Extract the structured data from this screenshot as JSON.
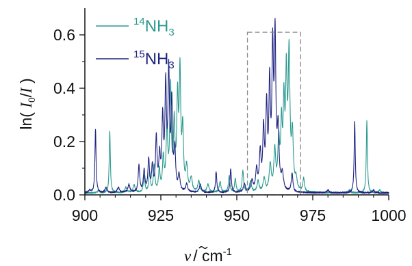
{
  "chart_data": {
    "type": "line",
    "title": "",
    "xlabel": {
      "symbol": "ν",
      "rest": "/ cm",
      "sup": "-1"
    },
    "ylabel": {
      "prefix": "ln( ",
      "num": "I",
      "num_sub": "0",
      "sep": "/",
      "den": "I",
      "suffix": " )"
    },
    "xlim": [
      900,
      1000
    ],
    "ylim": [
      0,
      0.7
    ],
    "xticks": [
      900,
      925,
      950,
      975,
      1000
    ],
    "xtick_labels": [
      "900",
      "925",
      "950",
      "975",
      "1000"
    ],
    "yticks": [
      0.0,
      0.2,
      0.4,
      0.6
    ],
    "ytick_labels": [
      "0.0",
      "0.2",
      "0.4",
      "0.6"
    ],
    "grid": false,
    "legend_position": "top-left",
    "highlight_box": {
      "x": [
        953.5,
        971
      ],
      "y": [
        0,
        0.61
      ],
      "style": "dashed"
    },
    "series": [
      {
        "name_parts": {
          "sup": "14",
          "main": "NH",
          "sub": "3"
        },
        "color": "#2a9a8f",
        "peaks": [
          {
            "x": 904.5,
            "h": 0.01,
            "w": 0.3
          },
          {
            "x": 908.2,
            "h": 0.23,
            "w": 0.22
          },
          {
            "x": 913.5,
            "h": 0.02,
            "w": 0.4
          },
          {
            "x": 916.2,
            "h": 0.03,
            "w": 0.4
          },
          {
            "x": 919.5,
            "h": 0.06,
            "w": 0.3
          },
          {
            "x": 921.3,
            "h": 0.07,
            "w": 0.3
          },
          {
            "x": 922.8,
            "h": 0.1,
            "w": 0.3
          },
          {
            "x": 924.5,
            "h": 0.08,
            "w": 0.3
          },
          {
            "x": 925.8,
            "h": 0.12,
            "w": 0.3
          },
          {
            "x": 927.0,
            "h": 0.22,
            "w": 0.35
          },
          {
            "x": 928.2,
            "h": 0.38,
            "w": 0.3
          },
          {
            "x": 929.4,
            "h": 0.24,
            "w": 0.3
          },
          {
            "x": 930.5,
            "h": 0.33,
            "w": 0.3
          },
          {
            "x": 931.3,
            "h": 0.43,
            "w": 0.3
          },
          {
            "x": 932.2,
            "h": 0.22,
            "w": 0.3
          },
          {
            "x": 933.5,
            "h": 0.09,
            "w": 0.35
          },
          {
            "x": 935.0,
            "h": 0.05,
            "w": 0.4
          },
          {
            "x": 937.5,
            "h": 0.04,
            "w": 0.4
          },
          {
            "x": 940.5,
            "h": 0.03,
            "w": 0.4
          },
          {
            "x": 944.5,
            "h": 0.04,
            "w": 0.35
          },
          {
            "x": 947.5,
            "h": 0.06,
            "w": 0.3
          },
          {
            "x": 949.5,
            "h": 0.05,
            "w": 0.3
          },
          {
            "x": 952.0,
            "h": 0.08,
            "w": 0.3
          },
          {
            "x": 954.5,
            "h": 0.04,
            "w": 0.4
          },
          {
            "x": 957.0,
            "h": 0.04,
            "w": 0.4
          },
          {
            "x": 959.0,
            "h": 0.05,
            "w": 0.4
          },
          {
            "x": 961.0,
            "h": 0.1,
            "w": 0.4
          },
          {
            "x": 962.5,
            "h": 0.15,
            "w": 0.35
          },
          {
            "x": 963.8,
            "h": 0.18,
            "w": 0.35
          },
          {
            "x": 964.7,
            "h": 0.23,
            "w": 0.3
          },
          {
            "x": 965.5,
            "h": 0.3,
            "w": 0.3
          },
          {
            "x": 966.3,
            "h": 0.4,
            "w": 0.3
          },
          {
            "x": 967.2,
            "h": 0.5,
            "w": 0.35
          },
          {
            "x": 968.3,
            "h": 0.2,
            "w": 0.35
          },
          {
            "x": 969.5,
            "h": 0.04,
            "w": 0.4
          },
          {
            "x": 972.0,
            "h": 0.05,
            "w": 0.3
          },
          {
            "x": 987.0,
            "h": 0.01,
            "w": 0.4
          },
          {
            "x": 992.8,
            "h": 0.27,
            "w": 0.22
          },
          {
            "x": 997.0,
            "h": 0.01,
            "w": 0.4
          }
        ]
      },
      {
        "name_parts": {
          "sup": "15",
          "main": "NH",
          "sub": "3"
        },
        "color": "#1f2380",
        "peaks": [
          {
            "x": 901.5,
            "h": 0.01,
            "w": 0.4
          },
          {
            "x": 903.5,
            "h": 0.24,
            "w": 0.22
          },
          {
            "x": 907.0,
            "h": 0.02,
            "w": 0.4
          },
          {
            "x": 911.0,
            "h": 0.02,
            "w": 0.4
          },
          {
            "x": 914.5,
            "h": 0.03,
            "w": 0.4
          },
          {
            "x": 917.8,
            "h": 0.1,
            "w": 0.3
          },
          {
            "x": 919.5,
            "h": 0.08,
            "w": 0.3
          },
          {
            "x": 921.0,
            "h": 0.12,
            "w": 0.3
          },
          {
            "x": 922.2,
            "h": 0.09,
            "w": 0.3
          },
          {
            "x": 923.5,
            "h": 0.2,
            "w": 0.3
          },
          {
            "x": 924.6,
            "h": 0.12,
            "w": 0.3
          },
          {
            "x": 925.6,
            "h": 0.26,
            "w": 0.3
          },
          {
            "x": 926.6,
            "h": 0.38,
            "w": 0.3
          },
          {
            "x": 927.6,
            "h": 0.43,
            "w": 0.3
          },
          {
            "x": 928.6,
            "h": 0.32,
            "w": 0.3
          },
          {
            "x": 929.6,
            "h": 0.15,
            "w": 0.3
          },
          {
            "x": 931.0,
            "h": 0.06,
            "w": 0.35
          },
          {
            "x": 933.5,
            "h": 0.03,
            "w": 0.4
          },
          {
            "x": 938.0,
            "h": 0.03,
            "w": 0.4
          },
          {
            "x": 943.2,
            "h": 0.08,
            "w": 0.25
          },
          {
            "x": 948.0,
            "h": 0.09,
            "w": 0.25
          },
          {
            "x": 952.5,
            "h": 0.03,
            "w": 0.4
          },
          {
            "x": 955.0,
            "h": 0.04,
            "w": 0.4
          },
          {
            "x": 956.5,
            "h": 0.08,
            "w": 0.35
          },
          {
            "x": 957.7,
            "h": 0.14,
            "w": 0.35
          },
          {
            "x": 958.8,
            "h": 0.22,
            "w": 0.3
          },
          {
            "x": 959.8,
            "h": 0.3,
            "w": 0.3
          },
          {
            "x": 960.8,
            "h": 0.38,
            "w": 0.3
          },
          {
            "x": 961.8,
            "h": 0.5,
            "w": 0.3
          },
          {
            "x": 962.6,
            "h": 0.55,
            "w": 0.3
          },
          {
            "x": 963.6,
            "h": 0.22,
            "w": 0.35
          },
          {
            "x": 965.0,
            "h": 0.06,
            "w": 0.4
          },
          {
            "x": 968.2,
            "h": 0.07,
            "w": 0.3
          },
          {
            "x": 980.0,
            "h": 0.01,
            "w": 0.4
          },
          {
            "x": 988.8,
            "h": 0.27,
            "w": 0.22
          },
          {
            "x": 995.0,
            "h": 0.01,
            "w": 0.4
          }
        ]
      }
    ]
  }
}
